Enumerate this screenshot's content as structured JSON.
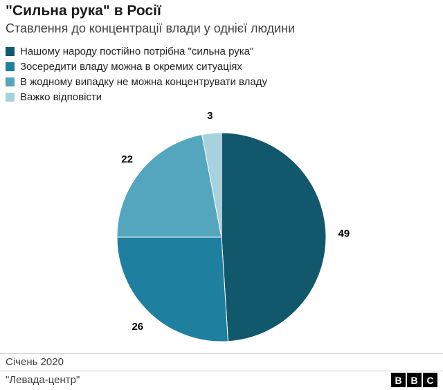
{
  "header": {
    "title": "\"Сильна рука\" в Росії",
    "subtitle": "Ставлення до концентрації влади у однієї людини"
  },
  "chart_data": {
    "type": "pie",
    "title": "\"Сильна рука\" в Росії",
    "subtitle": "Ставлення до концентрації влади у однієї людини",
    "labels": [
      "Нашому народу постійно потрібна \"сильна рука\"",
      "Зосередити владу можна в окремих ситуаціях",
      "В жодному випадку не можна концентрувати владу",
      "Важко відповісти"
    ],
    "values": [
      49,
      26,
      22,
      3
    ],
    "colors": [
      "#12586D",
      "#1E7F9F",
      "#54A5BE",
      "#A6D2DE"
    ],
    "legend_position": "top-left",
    "start_angle_deg": 0,
    "direction": "clockwise",
    "value_labels_outside": true
  },
  "footer": {
    "date": "Січень 2020",
    "source": "\"Левада-центр\"",
    "logo_letters": [
      "B",
      "B",
      "C"
    ]
  }
}
